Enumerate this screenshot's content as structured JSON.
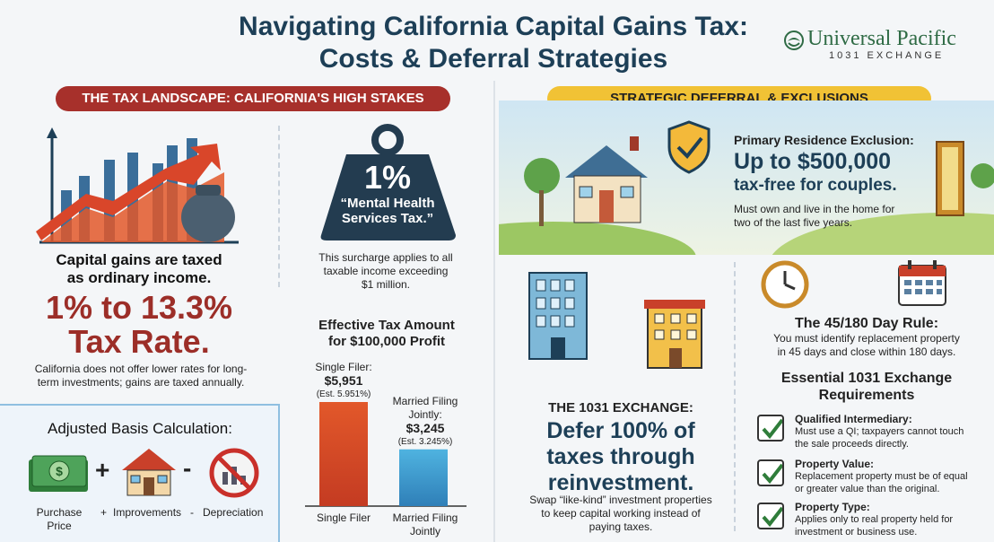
{
  "title_line1": "Navigating California Capital Gains Tax:",
  "title_line2": "Costs & Deferral Strategies",
  "logo": {
    "name": "Universal Pacific",
    "sub": "1031 EXCHANGE"
  },
  "left_banner": "THE TAX LANDSCAPE: CALIFORNIA'S HIGH STAKES",
  "right_banner": "STRATEGIC DEFERRAL & EXCLUSIONS",
  "ordinary": {
    "line1": "Capital gains are taxed",
    "line2": "as ordinary income."
  },
  "rate": {
    "line1": "1% to 13.3%",
    "line2": "Tax Rate."
  },
  "rate_note": {
    "line1": "California does not offer lower rates for long-",
    "line2": "term investments; gains are taxed annually."
  },
  "weight": {
    "value": "1%",
    "label1": "“Mental Health",
    "label2": "Services Tax.”"
  },
  "surcharge": {
    "line1": "This surcharge applies to all",
    "line2": "taxable income exceeding",
    "line3": "$1 million."
  },
  "effective": {
    "title1": "Effective Tax Amount",
    "title2": "for $100,000 Profit",
    "single": {
      "label": "Single Filer:",
      "amount": "$5,951",
      "est": "(Est. 5.951%)",
      "axis": "Single Filer"
    },
    "married": {
      "label1": "Married Filing",
      "label2": "Jointly:",
      "amount": "$3,245",
      "est": "(Est. 3.245%)",
      "axis1": "Married Filing",
      "axis2": "Jointly"
    }
  },
  "chart_data": {
    "type": "bar",
    "categories": [
      "Single Filer",
      "Married Filing Jointly"
    ],
    "values": [
      5951,
      3245
    ],
    "title": "Effective Tax Amount for $100,000 Profit"
  },
  "basis": {
    "title": "Adjusted Basis Calculation:",
    "purchase1": "Purchase",
    "purchase2": "Price",
    "plus": "+",
    "improvements": "Improvements",
    "minus": "-",
    "depreciation": "Depreciation"
  },
  "residence": {
    "title": "Primary Residence Exclusion:",
    "amount": "Up to $500,000",
    "sub": "tax-free for couples.",
    "note1": "Must own and live in the home for",
    "note2": "two of the last five years."
  },
  "exchange": {
    "title": "THE 1031 EXCHANGE:",
    "big1": "Defer 100% of",
    "big2": "taxes through",
    "big3": "reinvestment.",
    "note1": "Swap “like-kind” investment properties",
    "note2": "to keep capital working instead of",
    "note3": "paying taxes."
  },
  "rule": {
    "title": "The 45/180 Day Rule:",
    "line1": "You must identify replacement property",
    "line2": "in 45 days and close within 180 days."
  },
  "requirements": {
    "title1": "Essential 1031 Exchange",
    "title2": "Requirements",
    "items": [
      {
        "title": "Qualified Intermediary:",
        "d1": "Must use a QI; taxpayers cannot touch",
        "d2": "the sale proceeds directly."
      },
      {
        "title": "Property Value:",
        "d1": "Replacement property must be of equal",
        "d2": "or greater value than the original."
      },
      {
        "title": "Property Type:",
        "d1": "Applies only to real property held for",
        "d2": "investment or business use."
      }
    ]
  },
  "colors": {
    "navy": "#1d3f57",
    "red": "#a7302b",
    "gold": "#f1c235",
    "green": "#2f7d3a",
    "bar_single": "#e2582a",
    "bar_married": "#3f9fd0"
  }
}
